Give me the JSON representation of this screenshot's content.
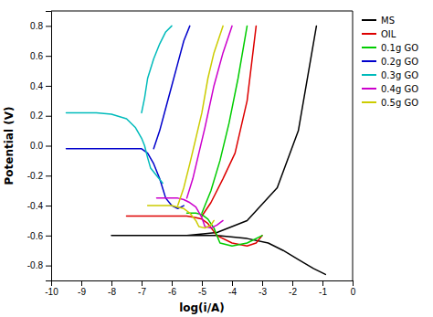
{
  "chart_data": {
    "type": "line",
    "xlabel": "log(i/A)",
    "ylabel": "Potential (V)",
    "xlim": [
      -10,
      0
    ],
    "ylim": [
      -0.9,
      0.9
    ],
    "xticks": [
      -10,
      -9,
      -8,
      -7,
      -6,
      -5,
      -4,
      -3,
      -2,
      -1,
      0
    ],
    "yticks": [
      -0.8,
      -0.6,
      -0.4,
      -0.2,
      {
        "value": 0.0,
        "label": "0.0"
      },
      0.2,
      0.4,
      0.6,
      0.8
    ],
    "legend": "upper right",
    "series": [
      {
        "name": "MS",
        "color": "#000000",
        "x": [
          -8.0,
          -7.5,
          -7.0,
          -6.5,
          -6.0,
          -5.8,
          -5.5,
          null,
          -5.5,
          -4.5,
          -3.5,
          -2.8,
          -2.3,
          -1.8,
          -1.3,
          -0.9,
          null,
          -5.5,
          -4.5,
          -3.5,
          -2.5,
          -1.8,
          -1.2
        ],
        "values": [
          -0.6,
          -0.6,
          -0.6,
          -0.6,
          -0.6,
          -0.6,
          -0.6,
          null,
          -0.6,
          -0.6,
          -0.62,
          -0.65,
          -0.7,
          -0.76,
          -0.82,
          -0.86,
          null,
          -0.6,
          -0.58,
          -0.5,
          -0.28,
          0.1,
          0.8
        ]
      },
      {
        "name": "OIL",
        "color": "#dd0000",
        "x": [
          -7.5,
          -7.0,
          -6.5,
          -6.0,
          -5.5,
          -5.2,
          -5.0,
          -4.8,
          -4.5,
          null,
          -4.5,
          -4.0,
          -3.5,
          -3.2,
          -3.0,
          null,
          -5.0,
          -4.7,
          -4.3,
          -3.9,
          -3.5,
          -3.2
        ],
        "values": [
          -0.47,
          -0.47,
          -0.47,
          -0.47,
          -0.47,
          -0.48,
          -0.49,
          -0.52,
          -0.6,
          null,
          -0.6,
          -0.65,
          -0.67,
          -0.65,
          -0.6,
          null,
          -0.47,
          -0.38,
          -0.22,
          -0.05,
          0.3,
          0.8
        ]
      },
      {
        "name": "0.1g GO",
        "color": "#00cc00",
        "x": [
          -5.5,
          -5.2,
          -5.0,
          -4.8,
          -4.6,
          -4.4,
          null,
          -4.4,
          -4.0,
          -3.5,
          -3.0,
          null,
          -5.0,
          -4.7,
          -4.4,
          -4.1,
          -3.8,
          -3.5
        ],
        "values": [
          -0.45,
          -0.45,
          -0.46,
          -0.49,
          -0.55,
          -0.65,
          null,
          -0.65,
          -0.67,
          -0.65,
          -0.6,
          null,
          -0.45,
          -0.3,
          -0.1,
          0.15,
          0.45,
          0.8
        ]
      },
      {
        "name": "0.2g GO",
        "color": "#0000cc",
        "x": [
          -9.5,
          -9.0,
          -8.5,
          -8.0,
          -7.5,
          -7.0,
          -6.8,
          -6.6,
          -6.4,
          -6.2,
          null,
          -6.2,
          -6.0,
          -5.8,
          -5.6,
          null,
          -6.6,
          -6.4,
          -6.2,
          -6.0,
          -5.8,
          -5.6,
          -5.4
        ],
        "values": [
          -0.02,
          -0.02,
          -0.02,
          -0.02,
          -0.02,
          -0.02,
          -0.05,
          -0.12,
          -0.22,
          -0.35,
          null,
          -0.35,
          -0.4,
          -0.42,
          -0.4,
          null,
          -0.02,
          0.1,
          0.25,
          0.4,
          0.55,
          0.7,
          0.8
        ]
      },
      {
        "name": "0.3g GO",
        "color": "#00bbbb",
        "x": [
          -9.5,
          -9.0,
          -8.5,
          -8.0,
          -7.5,
          -7.2,
          -7.0,
          -6.9,
          -6.8,
          -6.7,
          null,
          -6.7,
          -6.5,
          -6.3,
          null,
          -7.0,
          -6.9,
          -6.8,
          -6.6,
          -6.4,
          -6.2,
          -6.0
        ],
        "values": [
          0.22,
          0.22,
          0.22,
          0.21,
          0.18,
          0.12,
          0.05,
          0.0,
          -0.08,
          -0.15,
          null,
          -0.15,
          -0.2,
          -0.25,
          null,
          0.22,
          0.32,
          0.45,
          0.58,
          0.68,
          0.76,
          0.8
        ]
      },
      {
        "name": "0.4g GO",
        "color": "#cc00cc",
        "x": [
          -6.5,
          -6.0,
          -5.8,
          -5.6,
          -5.4,
          -5.2,
          -5.0,
          -4.9,
          null,
          -4.9,
          -4.7,
          -4.5,
          -4.3,
          null,
          -5.5,
          -5.3,
          -5.1,
          -4.9,
          -4.6,
          -4.3,
          -4.0
        ],
        "values": [
          -0.35,
          -0.35,
          -0.35,
          -0.36,
          -0.38,
          -0.41,
          -0.48,
          -0.54,
          null,
          -0.54,
          -0.55,
          -0.53,
          -0.5,
          null,
          -0.35,
          -0.22,
          -0.05,
          0.12,
          0.4,
          0.62,
          0.8
        ]
      },
      {
        "name": "0.5g GO",
        "color": "#cccc00",
        "x": [
          -6.8,
          -6.5,
          -6.2,
          -6.0,
          -5.8,
          -5.6,
          -5.4,
          -5.2,
          -5.1,
          null,
          -5.1,
          -4.9,
          -4.7,
          -4.6,
          null,
          -5.8,
          -5.6,
          -5.4,
          -5.2,
          -5.0,
          -4.8,
          -4.6,
          -4.3
        ],
        "values": [
          -0.4,
          -0.4,
          -0.4,
          -0.4,
          -0.41,
          -0.42,
          -0.45,
          -0.5,
          -0.54,
          null,
          -0.54,
          -0.55,
          -0.53,
          -0.5,
          null,
          -0.4,
          -0.28,
          -0.12,
          0.05,
          0.22,
          0.45,
          0.62,
          0.8
        ]
      }
    ]
  }
}
